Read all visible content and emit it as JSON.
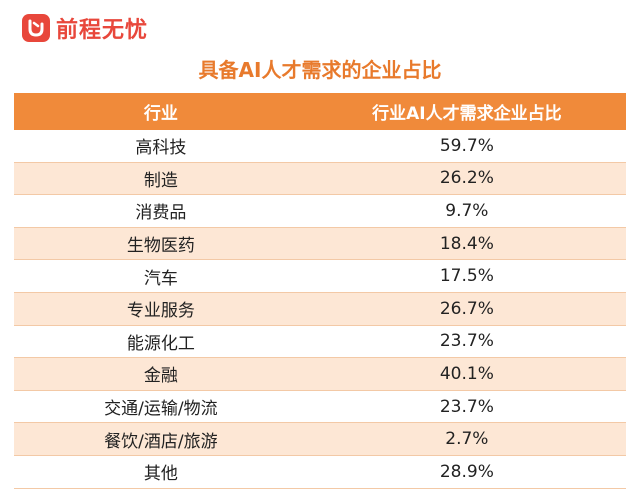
{
  "brand": {
    "name": "前程无忧"
  },
  "colors": {
    "accent": "#f08a3a",
    "title": "#e87a2c",
    "stripe": "#fde7d5",
    "brand": "#e8473b"
  },
  "chart_data": {
    "type": "table",
    "title": "具备AI人才需求的企业占比",
    "columns": [
      "行业",
      "行业AI人才需求企业占比"
    ],
    "rows": [
      [
        "高科技",
        "59.7%"
      ],
      [
        "制造",
        "26.2%"
      ],
      [
        "消费品",
        "9.7%"
      ],
      [
        "生物医药",
        "18.4%"
      ],
      [
        "汽车",
        "17.5%"
      ],
      [
        "专业服务",
        "26.7%"
      ],
      [
        "能源化工",
        "23.7%"
      ],
      [
        "金融",
        "40.1%"
      ],
      [
        "交通/运输/物流",
        "23.7%"
      ],
      [
        "餐饮/酒店/旅游",
        "2.7%"
      ],
      [
        "其他",
        "28.9%"
      ]
    ]
  }
}
